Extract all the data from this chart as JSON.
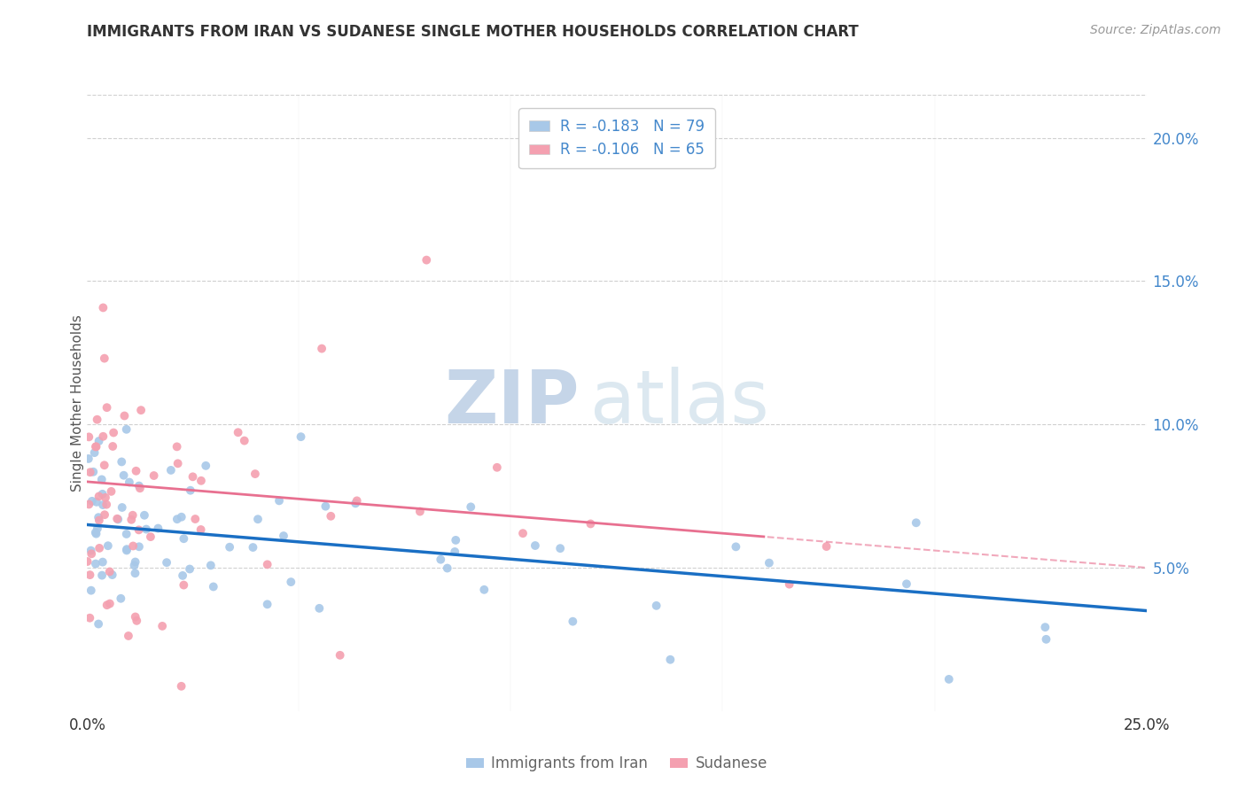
{
  "title": "IMMIGRANTS FROM IRAN VS SUDANESE SINGLE MOTHER HOUSEHOLDS CORRELATION CHART",
  "source": "Source: ZipAtlas.com",
  "ylabel": "Single Mother Households",
  "xlim": [
    0.0,
    0.25
  ],
  "ylim": [
    0.0,
    0.215
  ],
  "ytick_vals": [
    0.05,
    0.1,
    0.15,
    0.2
  ],
  "ytick_labels": [
    "5.0%",
    "10.0%",
    "15.0%",
    "20.0%"
  ],
  "legend_entries": [
    {
      "label": "R = -0.183   N = 79",
      "color": "#a8c8e8"
    },
    {
      "label": "R = -0.106   N = 65",
      "color": "#f4a0b0"
    }
  ],
  "iran_color": "#a8c8e8",
  "sudan_color": "#f4a0b0",
  "iran_line_color": "#1a6fc4",
  "sudan_line_color": "#e87090",
  "watermark_zip": "ZIP",
  "watermark_atlas": "atlas",
  "watermark_color": "#d8e4f0",
  "background_color": "#ffffff",
  "grid_color": "#d0d0d0",
  "title_color": "#333333",
  "source_color": "#999999",
  "ytick_color": "#4488cc",
  "bottom_label_color": "#666666"
}
